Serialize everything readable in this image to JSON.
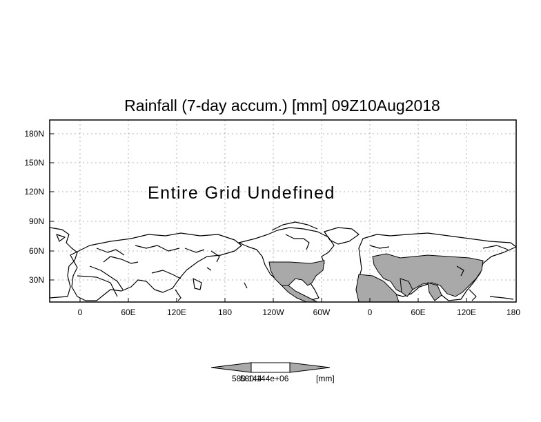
{
  "title": "Rainfall (7-day accum.) [mm] 09Z10Aug2018",
  "message": "Entire Grid Undefined",
  "y_ticks": [
    "180N",
    "150N",
    "120N",
    "90N",
    "60N",
    "30N"
  ],
  "x_ticks": [
    "0",
    "60E",
    "120E",
    "180",
    "120W",
    "60W",
    "0",
    "60E",
    "120E",
    "180"
  ],
  "colorbar": {
    "label_left": "580.144",
    "label_right": "580.144e+06",
    "units": "[mm]"
  },
  "colors": {
    "shaded_land": "#a9a9a9",
    "coast": "#000000",
    "background": "#ffffff"
  }
}
